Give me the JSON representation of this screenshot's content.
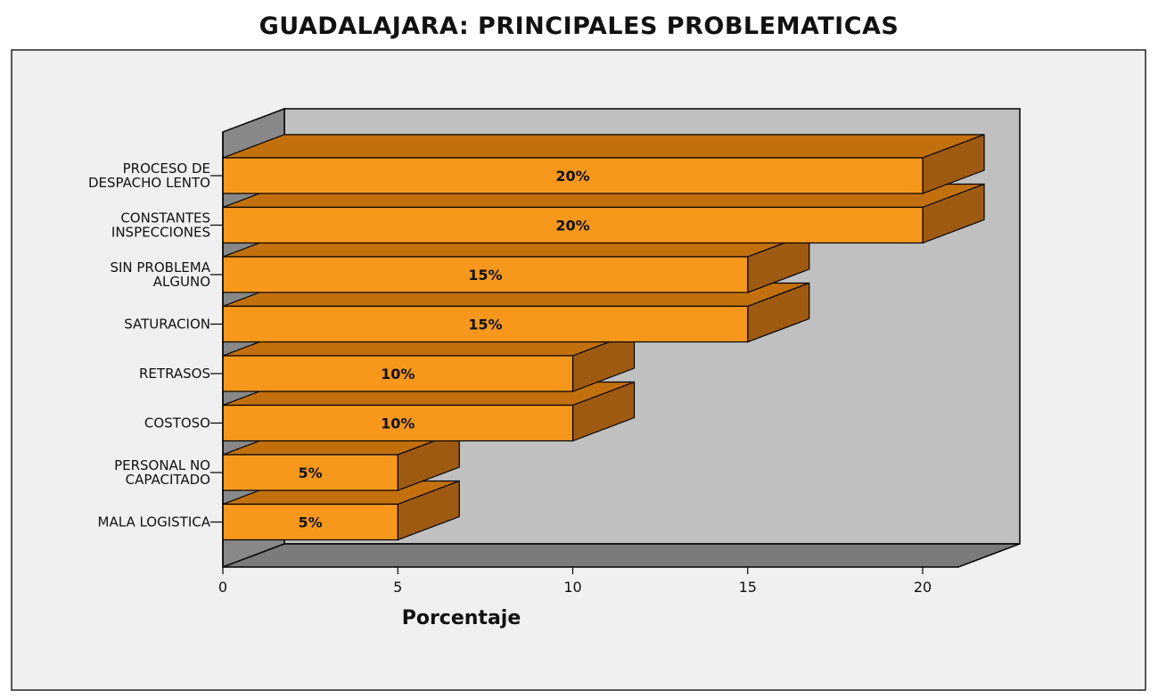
{
  "chart_data": {
    "type": "bar",
    "orientation": "horizontal",
    "title": "GUADALAJARA: PRINCIPALES PROBLEMATICAS",
    "xlabel": "Porcentaje",
    "ylabel": "",
    "xlim": [
      0,
      20
    ],
    "xticks": [
      0,
      5,
      10,
      15,
      20
    ],
    "categories": [
      [
        "PROCESO DE",
        "DESPACHO LENTO"
      ],
      [
        "CONSTANTES",
        "INSPECCIONES"
      ],
      [
        "SIN PROBLEMA",
        "ALGUNO"
      ],
      [
        "SATURACION"
      ],
      [
        "RETRASOS"
      ],
      [
        "COSTOSO"
      ],
      [
        "PERSONAL NO",
        "CAPACITADO"
      ],
      [
        "MALA LOGISTICA"
      ]
    ],
    "values": [
      20,
      20,
      15,
      15,
      10,
      10,
      5,
      5
    ],
    "data_labels": [
      "20%",
      "20%",
      "15%",
      "15%",
      "10%",
      "10%",
      "5%",
      "5%"
    ],
    "grid": false,
    "legend": "none",
    "colors": {
      "bar_front": "#f7981d",
      "bar_top": "#c2700e",
      "bar_side": "#9e5a10",
      "wall_back": "#c0c0c0",
      "wall_side": "#888888",
      "floor": "#7b7b7b",
      "panel": "#f0f0f0"
    }
  }
}
